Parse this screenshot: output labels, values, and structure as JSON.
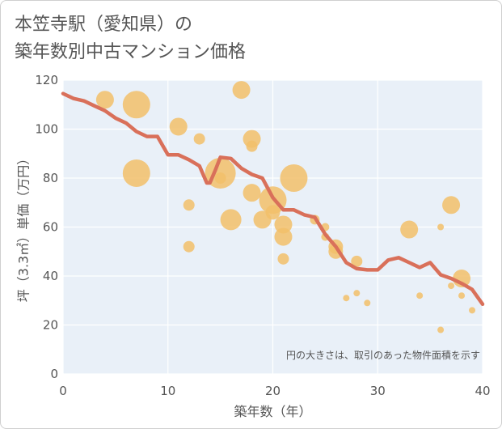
{
  "title": {
    "line1": "本笠寺駅（愛知県）の",
    "line2": "築年数別中古マンション価格"
  },
  "annotation": "円の大きさは、取引のあった物件面積を示す",
  "colors": {
    "line": "#d9705a",
    "bubble": "#f2c06a",
    "plot_bg": "#e9f0f8",
    "grid": "#ffffff",
    "axis_text": "#555555"
  },
  "chart_data": {
    "type": "scatter",
    "xlabel": "築年数（年）",
    "ylabel": "坪（3.3㎡）単価（万円）",
    "xlim": [
      0,
      40
    ],
    "ylim": [
      0,
      120
    ],
    "xticks": [
      0,
      10,
      20,
      30,
      40
    ],
    "yticks": [
      0,
      20,
      40,
      60,
      80,
      100,
      120
    ],
    "grid": true,
    "line": {
      "x": [
        0,
        1,
        2,
        3,
        4,
        5,
        6,
        7,
        8,
        9,
        10,
        11,
        12,
        13,
        13.7,
        14,
        14.5,
        15,
        16,
        17,
        18,
        19,
        20,
        21,
        22,
        23,
        24,
        25,
        26,
        27,
        28,
        29,
        30,
        31,
        32,
        33,
        34,
        35,
        36,
        37,
        38,
        39,
        40
      ],
      "y": [
        114.5,
        112.5,
        111.5,
        109.5,
        107.5,
        104.5,
        102.5,
        99,
        97,
        97,
        89.5,
        89.5,
        87.5,
        85,
        78,
        78,
        83,
        88.5,
        88,
        84,
        81.5,
        80,
        72,
        67,
        67,
        65,
        64,
        57,
        52,
        45.5,
        43,
        42.5,
        42.5,
        46.5,
        47.5,
        45.5,
        43.5,
        45.5,
        40.5,
        39,
        37,
        34.5,
        28.5
      ]
    },
    "bubbles": [
      {
        "x": 4,
        "y": 112,
        "s": 11
      },
      {
        "x": 7,
        "y": 110,
        "s": 17
      },
      {
        "x": 7,
        "y": 82,
        "s": 17
      },
      {
        "x": 11,
        "y": 101,
        "s": 11
      },
      {
        "x": 12,
        "y": 69,
        "s": 7
      },
      {
        "x": 12,
        "y": 52,
        "s": 7
      },
      {
        "x": 13,
        "y": 96,
        "s": 7
      },
      {
        "x": 15,
        "y": 82,
        "s": 19
      },
      {
        "x": 15,
        "y": 80,
        "s": 7
      },
      {
        "x": 16,
        "y": 63,
        "s": 13
      },
      {
        "x": 17,
        "y": 116,
        "s": 11
      },
      {
        "x": 18,
        "y": 96,
        "s": 11
      },
      {
        "x": 18,
        "y": 93,
        "s": 7
      },
      {
        "x": 18,
        "y": 74,
        "s": 11
      },
      {
        "x": 19,
        "y": 63,
        "s": 11
      },
      {
        "x": 20,
        "y": 71,
        "s": 17
      },
      {
        "x": 20,
        "y": 66,
        "s": 9
      },
      {
        "x": 21,
        "y": 61,
        "s": 11
      },
      {
        "x": 21,
        "y": 56,
        "s": 11
      },
      {
        "x": 21,
        "y": 47,
        "s": 7
      },
      {
        "x": 22,
        "y": 80,
        "s": 17
      },
      {
        "x": 24,
        "y": 63,
        "s": 6
      },
      {
        "x": 25,
        "y": 56,
        "s": 5
      },
      {
        "x": 25,
        "y": 60,
        "s": 5
      },
      {
        "x": 26,
        "y": 52,
        "s": 9
      },
      {
        "x": 26,
        "y": 50,
        "s": 9
      },
      {
        "x": 27,
        "y": 31,
        "s": 4
      },
      {
        "x": 28,
        "y": 33,
        "s": 4
      },
      {
        "x": 28,
        "y": 46,
        "s": 7
      },
      {
        "x": 29,
        "y": 29,
        "s": 4
      },
      {
        "x": 33,
        "y": 59,
        "s": 11
      },
      {
        "x": 34,
        "y": 32,
        "s": 4
      },
      {
        "x": 36,
        "y": 60,
        "s": 4
      },
      {
        "x": 36,
        "y": 18,
        "s": 4
      },
      {
        "x": 37,
        "y": 69,
        "s": 11
      },
      {
        "x": 37,
        "y": 36,
        "s": 4
      },
      {
        "x": 38,
        "y": 39,
        "s": 11
      },
      {
        "x": 38,
        "y": 32,
        "s": 4
      },
      {
        "x": 39,
        "y": 26,
        "s": 4
      }
    ]
  }
}
